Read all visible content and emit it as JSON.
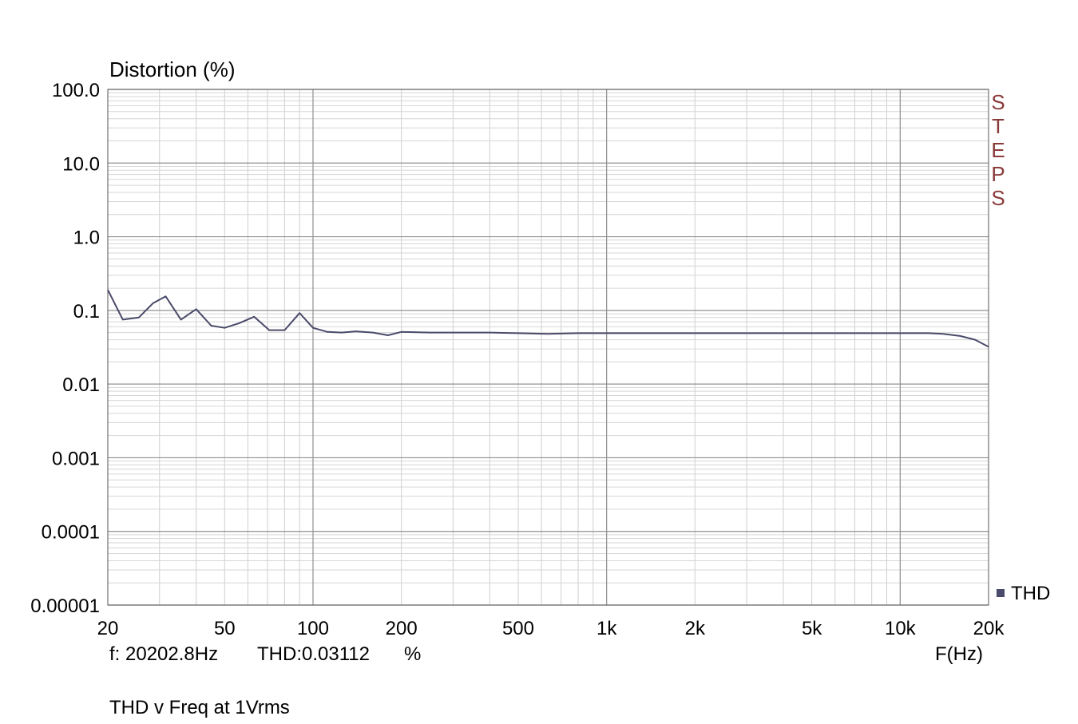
{
  "chart_data": {
    "type": "line",
    "title": "Distortion (%)",
    "ylabel": "Distortion (%)",
    "xlabel": "F(Hz)",
    "x_scale": "log",
    "y_scale": "log",
    "xlim": [
      20,
      20000
    ],
    "ylim": [
      1e-05,
      100
    ],
    "x_ticks": [
      {
        "value": 20,
        "label": "20"
      },
      {
        "value": 50,
        "label": "50"
      },
      {
        "value": 100,
        "label": "100"
      },
      {
        "value": 200,
        "label": "200"
      },
      {
        "value": 500,
        "label": "500"
      },
      {
        "value": 1000,
        "label": "1k"
      },
      {
        "value": 2000,
        "label": "2k"
      },
      {
        "value": 5000,
        "label": "5k"
      },
      {
        "value": 10000,
        "label": "10k"
      },
      {
        "value": 20000,
        "label": "20k"
      }
    ],
    "y_ticks": [
      {
        "value": 100,
        "label": "100.0"
      },
      {
        "value": 10,
        "label": "10.0"
      },
      {
        "value": 1,
        "label": "1.0"
      },
      {
        "value": 0.1,
        "label": "0.1"
      },
      {
        "value": 0.01,
        "label": "0.01"
      },
      {
        "value": 0.001,
        "label": "0.001"
      },
      {
        "value": 0.0001,
        "label": "0.0001"
      },
      {
        "value": 1e-05,
        "label": "0.00001"
      }
    ],
    "grid": true,
    "legend_position": "bottom-right",
    "series": [
      {
        "name": "THD",
        "color": "#4a4a6a",
        "x": [
          20,
          22.5,
          25.5,
          28.5,
          31.5,
          35.5,
          40,
          45,
          50,
          56,
          63,
          71,
          80,
          90,
          100,
          112,
          125,
          140,
          160,
          180,
          200,
          250,
          315,
          400,
          500,
          630,
          800,
          1000,
          2000,
          5000,
          10000,
          12500,
          14000,
          16000,
          18000,
          20000
        ],
        "y": [
          0.19,
          0.075,
          0.08,
          0.125,
          0.155,
          0.075,
          0.104,
          0.062,
          0.058,
          0.067,
          0.082,
          0.054,
          0.054,
          0.092,
          0.058,
          0.051,
          0.05,
          0.052,
          0.05,
          0.046,
          0.051,
          0.05,
          0.05,
          0.05,
          0.049,
          0.048,
          0.049,
          0.049,
          0.049,
          0.049,
          0.049,
          0.049,
          0.048,
          0.045,
          0.04,
          0.032
        ]
      }
    ]
  },
  "brand_letters": [
    "S",
    "T",
    "E",
    "P",
    "S"
  ],
  "brand_color": "#8b3a3a",
  "legend": {
    "label": "THD",
    "marker_color": "#4a4a6a"
  },
  "readout": {
    "freq": "f: 20202.8Hz",
    "thd": "THD:0.03112",
    "unit": "%"
  },
  "axis_unit_label": "F(Hz)",
  "caption": "THD v Freq at 1Vrms"
}
